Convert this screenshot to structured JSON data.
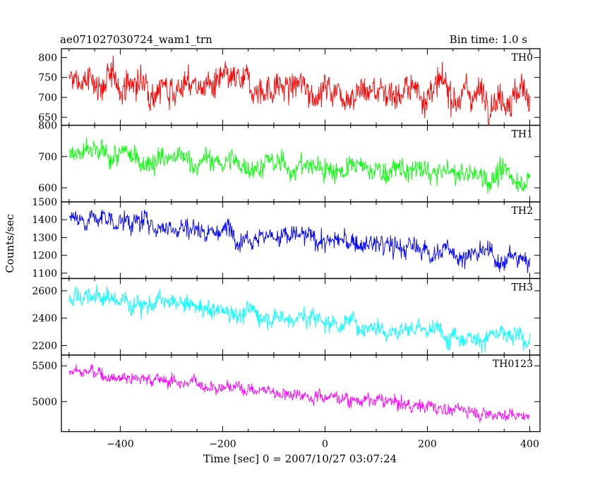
{
  "chart_data": {
    "type": "line",
    "title": "ae071027030724_wam1_trn",
    "subtitle": "Bin time: 1.0 s",
    "xlabel": "Time [sec] 0 = 2007/10/27 03:07:24",
    "ylabel": "Counts/sec",
    "xlim": [
      -515,
      420
    ],
    "x_ticks": [
      -400,
      -200,
      0,
      200,
      400
    ],
    "x_tick_labels": [
      "−400",
      "−200",
      "0",
      "200",
      "400"
    ],
    "series_x_range": [
      -500,
      400
    ],
    "bin_time_s": 1.0,
    "panels": [
      {
        "name": "TH0",
        "color": "#ff0000",
        "ylim": [
          630,
          822
        ],
        "yticks": [
          650,
          700,
          750,
          800
        ],
        "ytick_labels": [
          "650",
          "700",
          "750",
          "800"
        ],
        "trend_start": 738,
        "trend_end": 708,
        "noise_amplitude": 30
      },
      {
        "name": "TH1",
        "color": "#00ff00",
        "ylim": [
          555,
          800
        ],
        "yticks": [
          600,
          700,
          800
        ],
        "ytick_labels": [
          "600",
          "700",
          "800"
        ],
        "trend_start": 705,
        "trend_end": 632,
        "noise_amplitude": 28
      },
      {
        "name": "TH2",
        "color": "#0000ff",
        "ylim": [
          1070,
          1500
        ],
        "yticks": [
          1100,
          1200,
          1300,
          1400,
          1500
        ],
        "ytick_labels": [
          "1100",
          "1200",
          "1300",
          "1400",
          "1500"
        ],
        "trend_start": 1420,
        "trend_end": 1175,
        "noise_amplitude": 45
      },
      {
        "name": "TH3",
        "color": "#00ffff",
        "ylim": [
          2130,
          2690
        ],
        "yticks": [
          2200,
          2400,
          2600
        ],
        "ytick_labels": [
          "2200",
          "2400",
          "2600"
        ],
        "trend_start": 2570,
        "trend_end": 2235,
        "noise_amplitude": 55
      },
      {
        "name": "TH0123",
        "color": "#ff00ff",
        "ylim": [
          4580,
          5650
        ],
        "yticks": [
          5000,
          5500
        ],
        "ytick_labels": [
          "5000",
          "5500"
        ],
        "trend_start": 5430,
        "trend_end": 4790,
        "noise_amplitude": 70
      }
    ]
  }
}
